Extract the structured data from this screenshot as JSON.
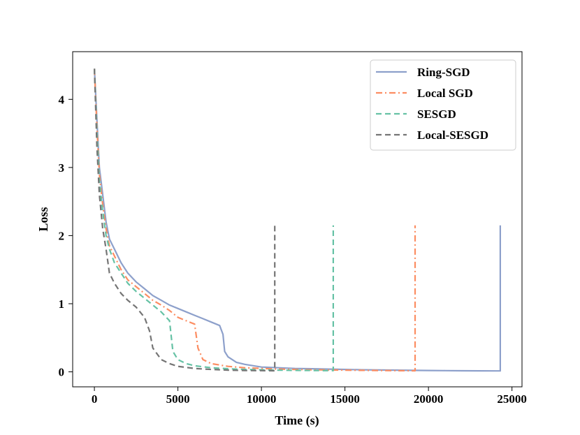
{
  "chart_data": {
    "type": "line",
    "title": "",
    "xlabel": "Time (s)",
    "ylabel": "Loss",
    "xlim": [
      -1300,
      25600
    ],
    "ylim": [
      -0.22,
      4.7
    ],
    "xticks": [
      0,
      5000,
      10000,
      15000,
      20000,
      25000
    ],
    "xtick_labels": [
      "0",
      "5000",
      "10000",
      "15000",
      "20000",
      "25000"
    ],
    "yticks": [
      0,
      1,
      2,
      3,
      4
    ],
    "ytick_labels": [
      "0",
      "1",
      "2",
      "3",
      "4"
    ],
    "grid": false,
    "legend_position": "top-right",
    "series": [
      {
        "name": "Ring-SGD",
        "color": "#8da0cb",
        "dash": "solid",
        "x": [
          0,
          150,
          300,
          500,
          700,
          900,
          1200,
          1600,
          2000,
          2500,
          3000,
          3500,
          4000,
          4500,
          5000,
          5500,
          6000,
          6500,
          7000,
          7500,
          7700,
          7800,
          8000,
          8500,
          9000,
          10000,
          11000,
          12000,
          13000,
          14000,
          15000,
          16000,
          17000,
          18000,
          19000,
          20000,
          21000,
          22000,
          23000,
          24000,
          24300,
          24300
        ],
        "values": [
          4.45,
          3.7,
          3.0,
          2.6,
          2.2,
          1.95,
          1.8,
          1.6,
          1.45,
          1.32,
          1.22,
          1.12,
          1.05,
          0.98,
          0.93,
          0.88,
          0.83,
          0.78,
          0.73,
          0.68,
          0.55,
          0.3,
          0.22,
          0.14,
          0.11,
          0.07,
          0.06,
          0.05,
          0.045,
          0.04,
          0.035,
          0.03,
          0.028,
          0.025,
          0.022,
          0.02,
          0.018,
          0.016,
          0.015,
          0.014,
          0.014,
          2.15
        ]
      },
      {
        "name": "Local SGD",
        "color": "#fc8d62",
        "dash": "dashdot",
        "x": [
          0,
          150,
          300,
          500,
          700,
          900,
          1200,
          1600,
          2000,
          2500,
          3000,
          3500,
          4000,
          4500,
          5000,
          5500,
          6000,
          6200,
          6500,
          7000,
          8000,
          9000,
          10000,
          11000,
          12000,
          13000,
          14000,
          15000,
          16000,
          17000,
          18000,
          19000,
          19200,
          19200
        ],
        "values": [
          4.45,
          3.6,
          2.9,
          2.45,
          2.1,
          1.85,
          1.7,
          1.5,
          1.35,
          1.25,
          1.15,
          1.05,
          0.98,
          0.9,
          0.8,
          0.75,
          0.7,
          0.35,
          0.18,
          0.12,
          0.08,
          0.06,
          0.05,
          0.04,
          0.035,
          0.03,
          0.028,
          0.025,
          0.022,
          0.02,
          0.018,
          0.016,
          0.016,
          2.15
        ]
      },
      {
        "name": "SESGD",
        "color": "#66c2a5",
        "dash": "dashed",
        "x": [
          0,
          150,
          300,
          500,
          700,
          900,
          1200,
          1600,
          2000,
          2500,
          3000,
          3500,
          4000,
          4500,
          4700,
          5000,
          5500,
          6000,
          7000,
          8000,
          9000,
          10000,
          11000,
          12000,
          13000,
          14000,
          14300,
          14300
        ],
        "values": [
          4.45,
          3.5,
          2.8,
          2.35,
          2.0,
          1.8,
          1.6,
          1.45,
          1.3,
          1.18,
          1.08,
          0.98,
          0.88,
          0.75,
          0.3,
          0.18,
          0.12,
          0.09,
          0.06,
          0.045,
          0.035,
          0.03,
          0.025,
          0.022,
          0.02,
          0.018,
          0.018,
          2.15
        ]
      },
      {
        "name": "Local-SESGD",
        "color": "#757575",
        "dash": "dashed",
        "x": [
          0,
          150,
          300,
          500,
          700,
          900,
          1200,
          1600,
          2000,
          2500,
          3000,
          3300,
          3500,
          4000,
          4500,
          5000,
          6000,
          7000,
          8000,
          9000,
          10000,
          10800,
          10800
        ],
        "values": [
          4.45,
          3.3,
          2.6,
          2.1,
          1.8,
          1.45,
          1.3,
          1.15,
          1.05,
          0.95,
          0.8,
          0.6,
          0.35,
          0.18,
          0.12,
          0.08,
          0.05,
          0.035,
          0.025,
          0.02,
          0.018,
          0.016,
          2.15
        ]
      }
    ]
  }
}
